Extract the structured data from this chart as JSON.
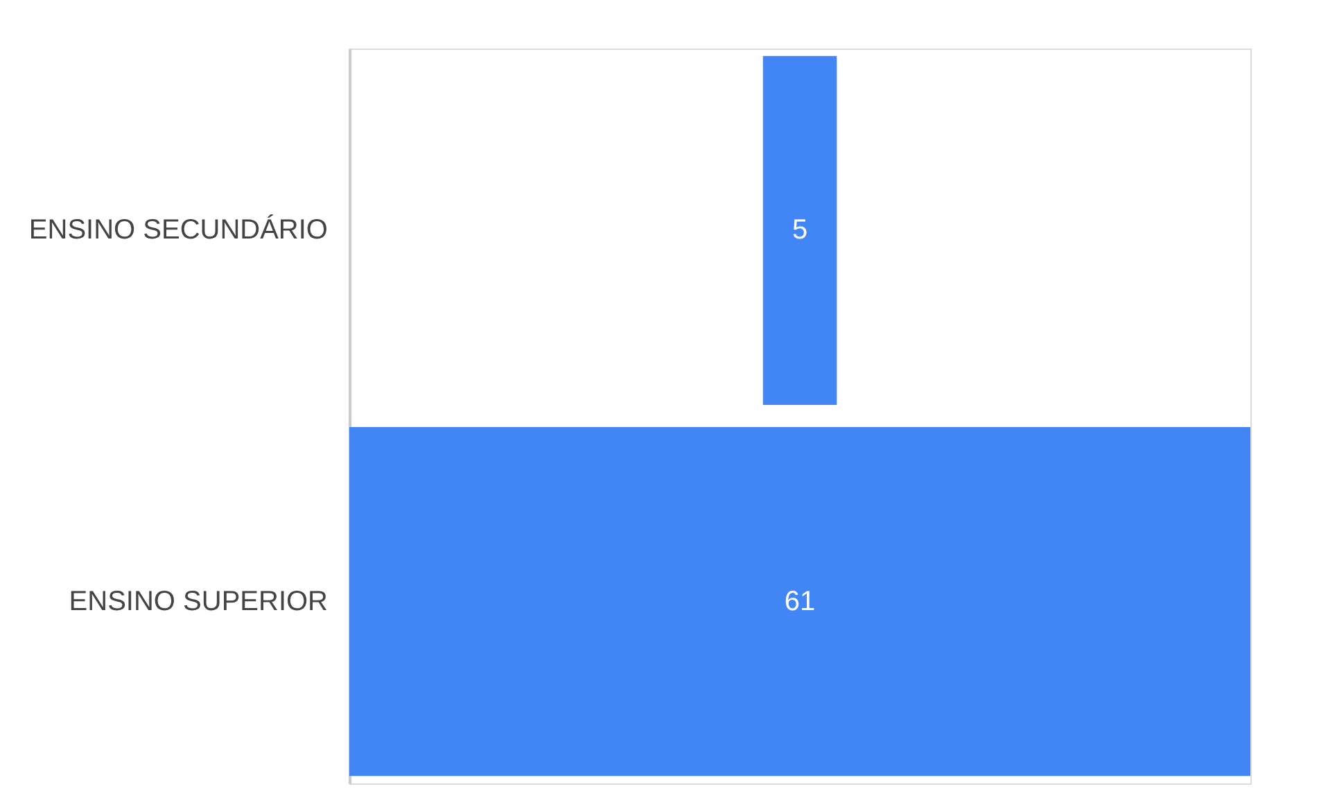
{
  "chart_data": {
    "type": "other",
    "categories": [
      "ENSINO SECUNDÁRIO",
      "ENSINO SUPERIOR"
    ],
    "values": [
      5,
      61
    ],
    "color": "#4285f4",
    "data_labels": true
  }
}
